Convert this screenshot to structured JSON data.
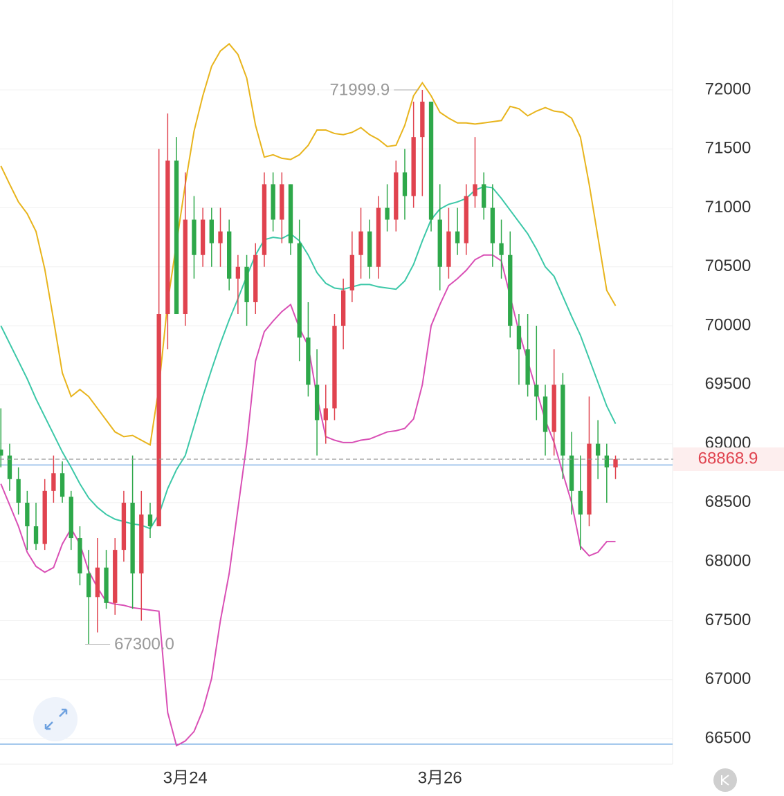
{
  "chart_data": {
    "type": "candlestick",
    "xlim": [
      -0.1,
      76.5
    ],
    "ylim": [
      66283,
      72762
    ],
    "yticks": [
      66500,
      67000,
      67500,
      68000,
      68500,
      69000,
      69500,
      70000,
      70500,
      71000,
      71500,
      72000
    ],
    "xticks": [
      {
        "value": 21,
        "label": "3月24"
      },
      {
        "value": 50,
        "label": "3月26"
      }
    ],
    "grid": true,
    "up_color": "#e0434f",
    "down_color": "#2ea84a",
    "open": [
      68950,
      68900,
      68700,
      68500,
      68300,
      68150,
      68600,
      68750,
      68550,
      68200,
      67900,
      67700,
      67950,
      67650,
      68100,
      68500,
      67900,
      68400,
      68300,
      70100,
      71400,
      70100,
      70900,
      70600,
      70900,
      70700,
      70800,
      70400,
      70500,
      70200,
      70600,
      71200,
      70900,
      71200,
      70700,
      69900,
      69500,
      69200,
      69300,
      70000,
      70300,
      70600,
      70800,
      70500,
      71000,
      70900,
      71300,
      71100,
      71600,
      71900,
      70900,
      70500,
      70800,
      70700,
      71100,
      71200,
      71000,
      70700,
      70600,
      70000,
      69800,
      69500,
      69400,
      69100,
      69500,
      68900,
      68600,
      68400,
      69000,
      68900,
      68800
    ],
    "high": [
      69300,
      69000,
      68800,
      68600,
      68500,
      68700,
      68900,
      68850,
      68600,
      68300,
      68100,
      68200,
      68100,
      68200,
      68600,
      68900,
      68600,
      68500,
      71500,
      71800,
      71600,
      71300,
      71100,
      71000,
      71000,
      71000,
      70900,
      70600,
      70600,
      70700,
      71300,
      71300,
      71300,
      71200,
      70900,
      70200,
      69800,
      69500,
      70100,
      70400,
      70800,
      71000,
      70900,
      71100,
      71200,
      71400,
      71500,
      71900,
      71999.9,
      71900,
      71200,
      71000,
      71000,
      71200,
      71600,
      71300,
      71200,
      70900,
      70800,
      70100,
      70100,
      70000,
      69500,
      69800,
      69600,
      69100,
      68900,
      69400,
      69200,
      69000,
      68900
    ],
    "low": [
      68800,
      68600,
      68400,
      68100,
      68100,
      68100,
      68500,
      68500,
      68100,
      67800,
      67300,
      67400,
      67600,
      67550,
      68000,
      67600,
      67500,
      68200,
      68300,
      69800,
      70100,
      70000,
      70400,
      70500,
      70500,
      70500,
      70300,
      70100,
      70000,
      70100,
      70500,
      70800,
      70700,
      70600,
      69700,
      69400,
      68900,
      69000,
      69200,
      69800,
      70200,
      70400,
      70400,
      70400,
      70800,
      70800,
      70900,
      71000,
      71100,
      70800,
      70300,
      70400,
      70600,
      70600,
      71000,
      70900,
      70500,
      70400,
      69900,
      69500,
      69400,
      69200,
      68900,
      68900,
      68700,
      68400,
      68100,
      68300,
      68700,
      68500,
      68700
    ],
    "close": [
      68900,
      68700,
      68500,
      68300,
      68150,
      68600,
      68750,
      68550,
      68200,
      67900,
      67700,
      67950,
      67650,
      68100,
      68500,
      67900,
      68400,
      68300,
      70100,
      71400,
      70100,
      70900,
      70600,
      70900,
      70700,
      70800,
      70400,
      70500,
      70200,
      70600,
      71200,
      70900,
      71200,
      70700,
      69900,
      69500,
      69200,
      69300,
      70000,
      70300,
      70600,
      70800,
      70500,
      71000,
      70900,
      71300,
      71100,
      71600,
      71900,
      70900,
      70500,
      70800,
      70700,
      71100,
      71200,
      71000,
      70700,
      70600,
      70000,
      69800,
      69500,
      69400,
      69100,
      69500,
      68900,
      68600,
      68400,
      69000,
      68900,
      68800,
      68868.9
    ],
    "lines": [
      {
        "color": "#e8b41c",
        "values": [
          71355,
          71200,
          71050,
          70950,
          70800,
          70480,
          70050,
          69600,
          69400,
          69460,
          69400,
          69300,
          69200,
          69100,
          69060,
          69070,
          69030,
          68990,
          69480,
          70200,
          70700,
          71200,
          71650,
          71950,
          72200,
          72330,
          72390,
          72300,
          72100,
          71700,
          71430,
          71450,
          71420,
          71410,
          71450,
          71530,
          71660,
          71660,
          71630,
          71620,
          71640,
          71680,
          71620,
          71580,
          71520,
          71530,
          71700,
          71950,
          72060,
          71950,
          71810,
          71760,
          71720,
          71720,
          71710,
          71720,
          71730,
          71740,
          71860,
          71840,
          71780,
          71820,
          71850,
          71820,
          71810,
          71760,
          71600,
          71200,
          70750,
          70300,
          70170
        ]
      },
      {
        "color": "#3cc8a8",
        "values": [
          70000,
          69850,
          69700,
          69550,
          69380,
          69230,
          69080,
          68930,
          68800,
          68660,
          68540,
          68460,
          68400,
          68360,
          68340,
          68320,
          68310,
          68280,
          68400,
          68620,
          68780,
          68900,
          69150,
          69400,
          69630,
          69850,
          70050,
          70230,
          70420,
          70600,
          70730,
          70750,
          70740,
          70780,
          70720,
          70600,
          70450,
          70360,
          70320,
          70310,
          70330,
          70350,
          70350,
          70330,
          70320,
          70310,
          70380,
          70520,
          70720,
          70900,
          70990,
          71030,
          71050,
          71080,
          71150,
          71180,
          71170,
          71080,
          70980,
          70880,
          70780,
          70650,
          70500,
          70420,
          70250,
          70080,
          69920,
          69720,
          69520,
          69320,
          69170
        ]
      },
      {
        "color": "#d94fb5",
        "values": [
          68660,
          68480,
          68300,
          68080,
          67960,
          67910,
          67950,
          68150,
          68280,
          68150,
          67920,
          67780,
          67660,
          67640,
          67630,
          67610,
          67600,
          67590,
          67580,
          66720,
          66440,
          66480,
          66560,
          66740,
          67010,
          67500,
          67900,
          68450,
          69000,
          69700,
          69950,
          70040,
          70120,
          70180,
          69980,
          69830,
          69400,
          69060,
          69030,
          69010,
          69010,
          69030,
          69040,
          69070,
          69100,
          69110,
          69130,
          69210,
          69500,
          70000,
          70180,
          70340,
          70400,
          70470,
          70560,
          70600,
          70600,
          70550,
          70250,
          69950,
          69700,
          69450,
          69200,
          69010,
          68750,
          68500,
          68130,
          68050,
          68080,
          68170,
          68170
        ]
      }
    ],
    "annotations": [
      {
        "x": 47.6,
        "value": 71999.9,
        "label": "71999.9",
        "side": "left"
      },
      {
        "x": 9.6,
        "value": 67300,
        "label": "67300.0",
        "side": "right"
      }
    ],
    "last_price": {
      "value": 68868.9,
      "label": "68868.9",
      "color": "#e0434f"
    },
    "price_lines": {
      "color": "#4a90d9",
      "values": [
        68820,
        66453
      ]
    }
  }
}
